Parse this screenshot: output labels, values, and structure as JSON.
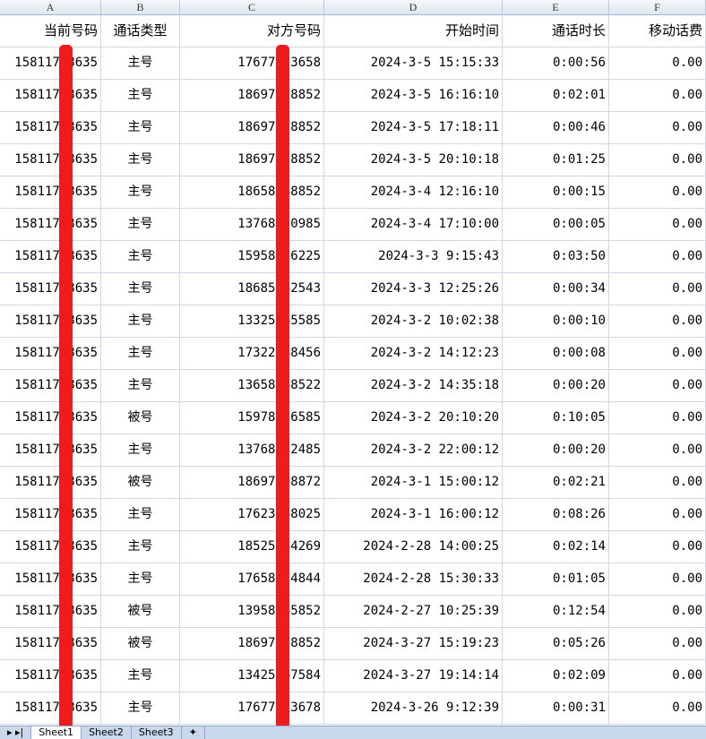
{
  "columns": [
    "A",
    "B",
    "C",
    "D",
    "E",
    "F"
  ],
  "header": [
    "当前号码",
    "通话类型",
    "对方号码",
    "开始时间",
    "通话时长",
    "移动话费"
  ],
  "rows": [
    [
      "15811758635",
      "主号",
      "17677123658",
      "2024-3-5 15:15:33",
      "0:00:56",
      "0.00"
    ],
    [
      "15811758635",
      "主号",
      "18697378852",
      "2024-3-5 16:16:10",
      "0:02:01",
      "0.00"
    ],
    [
      "15811758635",
      "主号",
      "18697378852",
      "2024-3-5 17:18:11",
      "0:00:46",
      "0.00"
    ],
    [
      "15811758635",
      "主号",
      "18697378852",
      "2024-3-5 20:10:18",
      "0:01:25",
      "0.00"
    ],
    [
      "15811758635",
      "主号",
      "18658548852",
      "2024-3-4 12:16:10",
      "0:00:15",
      "0.00"
    ],
    [
      "15811758635",
      "主号",
      "13768250985",
      "2024-3-4 17:10:00",
      "0:00:05",
      "0.00"
    ],
    [
      "15811758635",
      "主号",
      "15958426225",
      "2024-3-3 9:15:43",
      "0:03:50",
      "0.00"
    ],
    [
      "15811758635",
      "主号",
      "18685562543",
      "2024-3-3 12:25:26",
      "0:00:34",
      "0.00"
    ],
    [
      "15811758635",
      "主号",
      "13325545585",
      "2024-3-2 10:02:38",
      "0:00:10",
      "0.00"
    ],
    [
      "15811758635",
      "主号",
      "17322388456",
      "2024-3-2 14:12:23",
      "0:00:08",
      "0.00"
    ],
    [
      "15811758635",
      "主号",
      "13658568522",
      "2024-3-2 14:35:18",
      "0:00:20",
      "0.00"
    ],
    [
      "15811758635",
      "被号",
      "15978156585",
      "2024-3-2 20:10:20",
      "0:10:05",
      "0.00"
    ],
    [
      "15811758635",
      "主号",
      "13768252485",
      "2024-3-2 22:00:12",
      "0:00:20",
      "0.00"
    ],
    [
      "15811758635",
      "被号",
      "18697398872",
      "2024-3-1 15:00:12",
      "0:02:21",
      "0.00"
    ],
    [
      "15811758635",
      "主号",
      "17623568025",
      "2024-3-1 16:00:12",
      "0:08:26",
      "0.00"
    ],
    [
      "15811758635",
      "主号",
      "18525584269",
      "2024-2-28 14:00:25",
      "0:02:14",
      "0.00"
    ],
    [
      "15811758635",
      "主号",
      "17658474844",
      "2024-2-28 15:30:33",
      "0:01:05",
      "0.00"
    ],
    [
      "15811758635",
      "被号",
      "13958265852",
      "2024-2-27 10:25:39",
      "0:12:54",
      "0.00"
    ],
    [
      "15811758635",
      "被号",
      "18697378852",
      "2024-3-27 15:19:23",
      "0:05:26",
      "0.00"
    ],
    [
      "15811758635",
      "主号",
      "13425567584",
      "2024-3-27 19:14:14",
      "0:02:09",
      "0.00"
    ],
    [
      "15811758635",
      "主号",
      "17677123678",
      "2024-3-26 9:12:39",
      "0:00:31",
      "0.00"
    ]
  ],
  "sheet_tabs": [
    "Sheet1",
    "Sheet2",
    "Sheet3"
  ],
  "redaction_color": "#ee1c1c"
}
